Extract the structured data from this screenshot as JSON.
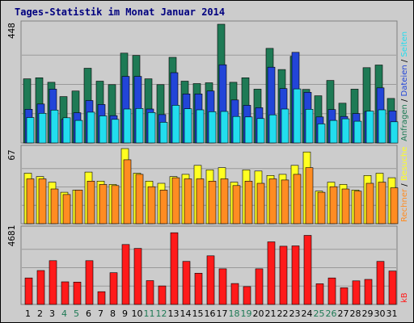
{
  "chart_data": {
    "type": "bar",
    "title": "Tages-Statistik im Monat Januar 2014",
    "days": [
      "1",
      "2",
      "3",
      "4",
      "5",
      "6",
      "7",
      "8",
      "9",
      "10",
      "11",
      "12",
      "13",
      "14",
      "15",
      "16",
      "17",
      "18",
      "19",
      "20",
      "21",
      "22",
      "23",
      "24",
      "25",
      "26",
      "27",
      "28",
      "29",
      "30",
      "31"
    ],
    "weekend_days": [
      "4",
      "5",
      "11",
      "12",
      "18",
      "19",
      "25",
      "26"
    ],
    "colors": {
      "anfragen": "#1e7a55",
      "dateien": "#2245d8",
      "seiten": "#22ddee",
      "besuche": "#ffff22",
      "rechner": "#ff8c22",
      "kb": "#ff1a1a",
      "weekday_text": "#000000",
      "weekend_text": "#1e7a55",
      "title_text": "#00007f"
    },
    "panels": [
      {
        "id": "requests",
        "max_label": "448",
        "max": 448,
        "legend": [
          {
            "label": "Anfragen",
            "color": "#1e7a55"
          },
          {
            "label": "Dateien",
            "color": "#2245d8"
          },
          {
            "label": "Seiten",
            "color": "#22ddee"
          }
        ],
        "series": [
          {
            "name": "Anfragen",
            "values": [
              242,
              246,
              229,
              175,
              196,
              282,
              233,
              220,
              339,
              330,
              242,
              220,
              323,
              233,
              224,
              227,
              448,
              229,
              246,
              203,
              357,
              277,
              327,
              202,
              178,
              236,
              150,
              203,
              284,
              294,
              168
            ]
          },
          {
            "name": "Dateien",
            "values": [
              127,
              147,
              203,
              89,
              114,
              160,
              145,
              103,
              251,
              251,
              128,
              107,
              265,
              185,
              185,
              196,
              295,
              162,
              142,
              133,
              286,
              205,
              342,
              191,
              98,
              126,
              100,
              111,
              119,
              208,
              121
            ]
          },
          {
            "name": "Seiten",
            "values": [
              96,
              112,
              124,
              95,
              85,
              116,
              102,
              89,
              128,
              130,
              115,
              78,
              142,
              129,
              125,
              118,
              119,
              100,
              98,
              92,
              106,
              128,
              204,
              127,
              72,
              85,
              91,
              82,
              120,
              125,
              80
            ]
          }
        ]
      },
      {
        "id": "visits",
        "max_label": "67",
        "max": 67,
        "legend": [
          {
            "label": "Rechner",
            "color": "#ff8c22"
          },
          {
            "label": "Besuche",
            "color": "#ffff22"
          }
        ],
        "series": [
          {
            "name": "Besuche",
            "values": [
              45,
              42,
              37,
              28,
              30,
              46,
              38,
              35,
              67,
              45,
              38,
              36,
              42,
              44,
              52,
              48,
              50,
              37,
              48,
              47,
              43,
              44,
              52,
              64,
              29,
              37,
              35,
              30,
              43,
              45,
              41
            ]
          },
          {
            "name": "Rechner",
            "values": [
              40,
              40,
              31,
              26,
              30,
              38,
              35,
              34,
              57,
              44,
              33,
              30,
              41,
              40,
              40,
              38,
              40,
              34,
              38,
              36,
              40,
              39,
              44,
              50,
              28,
              33,
              31,
              29,
              36,
              37,
              32
            ]
          }
        ]
      },
      {
        "id": "traffic",
        "max_label": "4681",
        "max": 4681,
        "legend": [
          {
            "label": "kB",
            "color": "#ff1a1a"
          }
        ],
        "series": [
          {
            "name": "kB",
            "values": [
              1650,
              2115,
              2730,
              1410,
              1395,
              2730,
              795,
              1980,
              3735,
              3495,
              1485,
              1155,
              4470,
              2685,
              1950,
              3030,
              2220,
              1305,
              1110,
              2220,
              3900,
              3630,
              3650,
              4305,
              1290,
              1650,
              1035,
              1470,
              1560,
              2685,
              2085
            ]
          }
        ]
      }
    ]
  }
}
